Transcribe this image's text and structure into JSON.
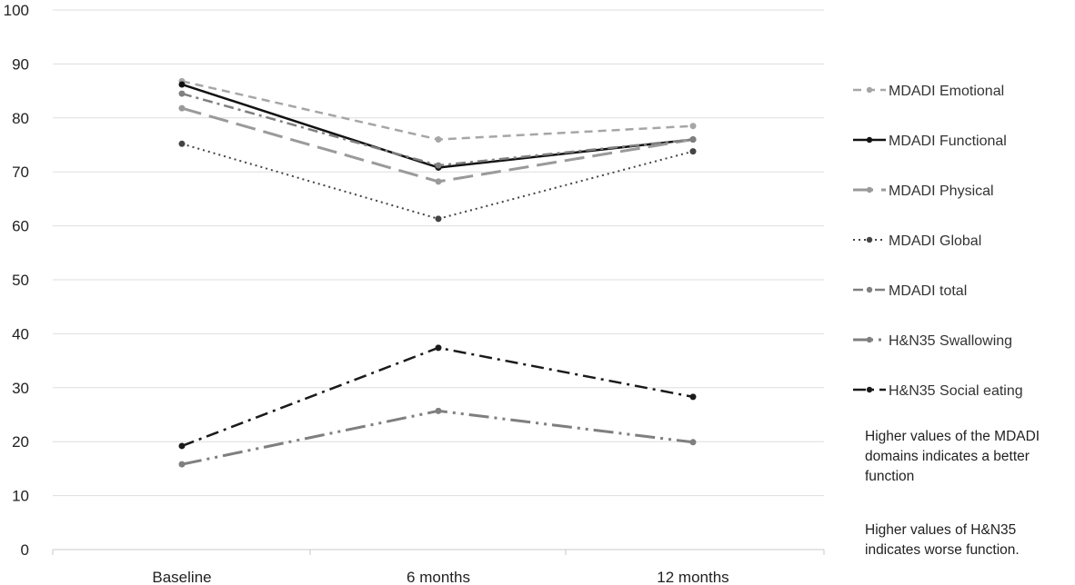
{
  "chart_data": {
    "type": "line",
    "categories": [
      "Baseline",
      "6 months",
      "12 months"
    ],
    "ylim": [
      0,
      100
    ],
    "yticks": [
      0,
      10,
      20,
      30,
      40,
      50,
      60,
      70,
      80,
      90,
      100
    ],
    "grid": true,
    "legend_position": "right",
    "series": [
      {
        "name": "MDADI Emotional",
        "values": [
          86.8,
          76.0,
          78.5
        ],
        "color": "#a6a6a6",
        "dash": "9,6",
        "width": 2.5
      },
      {
        "name": "MDADI Functional",
        "values": [
          86.2,
          70.8,
          76.0
        ],
        "color": "#111111",
        "dash": "",
        "width": 2.5
      },
      {
        "name": "MDADI Physical",
        "values": [
          81.8,
          68.2,
          76.0
        ],
        "color": "#9a9a9a",
        "dash": "22,9",
        "width": 3
      },
      {
        "name": "MDADI Global",
        "values": [
          75.2,
          61.3,
          73.8
        ],
        "color": "#444444",
        "dash": "2,4",
        "width": 2
      },
      {
        "name": "MDADI total",
        "values": [
          84.5,
          71.2,
          76.0
        ],
        "color": "#7f7f7f",
        "dash": "11,5,3,5",
        "width": 2.5
      },
      {
        "name": "H&N35 Swallowing",
        "values": [
          15.8,
          25.7,
          19.9
        ],
        "color": "#7f7f7f",
        "dash": "22,6,3,6,3,6",
        "width": 3
      },
      {
        "name": "H&N35 Social eating",
        "values": [
          19.2,
          37.4,
          28.3
        ],
        "color": "#1a1a1a",
        "dash": "14,6,3,6",
        "width": 2.5
      }
    ]
  },
  "notes": {
    "mdadi": "Higher values of the MDADI domains indicates a better function",
    "hn35": "Higher values of H&N35 indicates worse function."
  }
}
